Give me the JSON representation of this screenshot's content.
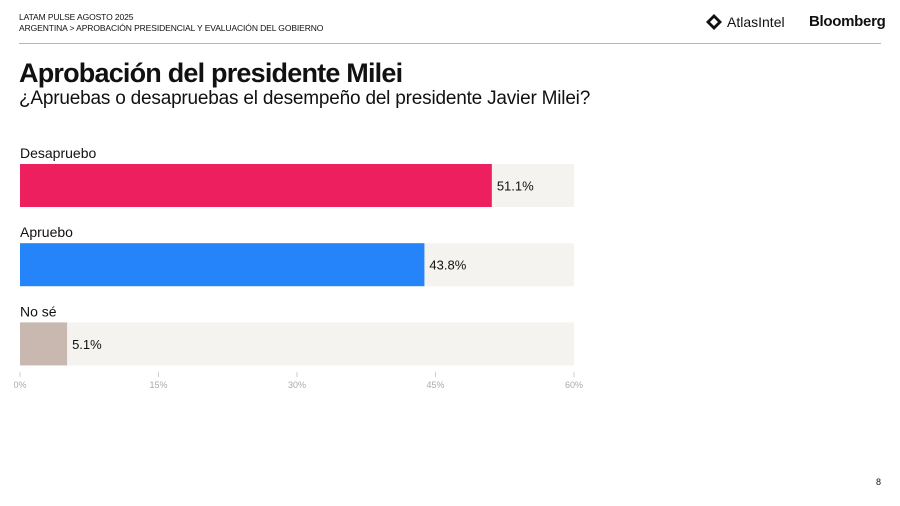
{
  "header": {
    "line1": "LATAM PULSE AGOSTO 2025",
    "line2": "ARGENTINA > APROBACIÓN PRESIDENCIAL Y EVALUACIÓN DEL GOBIERNO",
    "logos": [
      "AtlasIntel",
      "Bloomberg"
    ]
  },
  "title": "Aprobación del presidente Milei",
  "subtitle": "¿Apruebas o desapruebas el desempeño del presidente Javier Milei?",
  "page_number": "8",
  "chart_data": {
    "type": "bar",
    "orientation": "horizontal",
    "categories": [
      "Desapruebo",
      "Apruebo",
      "No sé"
    ],
    "values": [
      51.1,
      43.8,
      5.1
    ],
    "data_labels": [
      "51.1%",
      "43.8%",
      "5.1%"
    ],
    "colors": [
      "#ee1f5f",
      "#2584fa",
      "#c8b8b0"
    ],
    "track_color": "#f4f3f0",
    "xlim": [
      0,
      60
    ],
    "x_ticks": [
      "0%",
      "15%",
      "30%",
      "45%",
      "60%"
    ],
    "grid": false
  }
}
